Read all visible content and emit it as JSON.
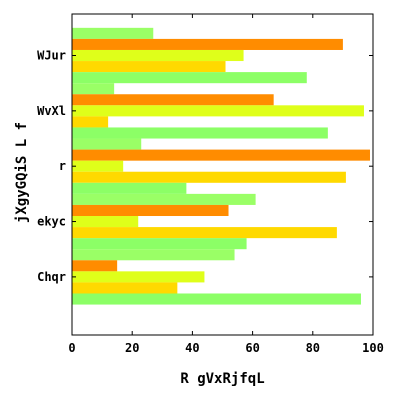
{
  "chart_data": {
    "type": "bar",
    "orientation": "horizontal",
    "title": "",
    "xlabel": "R gVxRjfqL",
    "ylabel": "jXgyGQiS L f",
    "xlim": [
      0,
      100
    ],
    "xticks": [
      0,
      20,
      40,
      60,
      80,
      100
    ],
    "categories": [
      "WJur",
      "WvXl",
      "r",
      "ekyc",
      "Chqr"
    ],
    "grid": false,
    "series": [
      {
        "color": "#9AFF66",
        "values": [
          27,
          14,
          23,
          61,
          54
        ]
      },
      {
        "color": "#FF8C00",
        "values": [
          90,
          67,
          99,
          52,
          15
        ]
      },
      {
        "color": "#DFFF1A",
        "values": [
          57,
          97,
          17,
          22,
          44
        ]
      },
      {
        "color": "#FFD900",
        "values": [
          51,
          12,
          91,
          88,
          35
        ]
      },
      {
        "color": "#8CFF66",
        "values": [
          78,
          85,
          38,
          58,
          96
        ]
      }
    ]
  }
}
